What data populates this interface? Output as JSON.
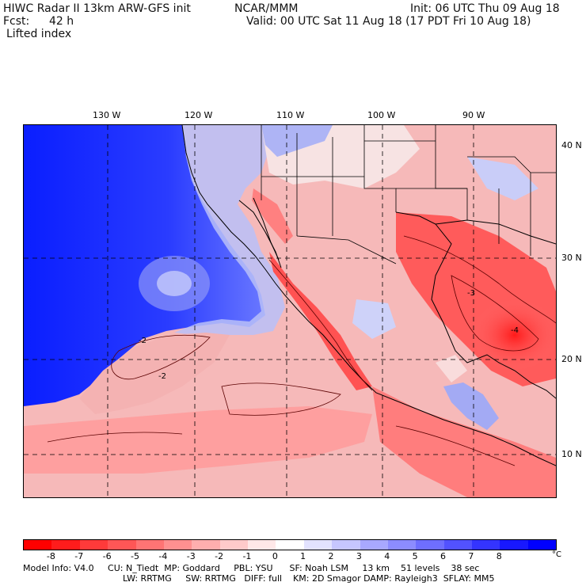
{
  "header": {
    "title": "HIWC Radar II 13km ARW-GFS init",
    "org": "NCAR/MMM",
    "init": "Init: 06 UTC Thu 09 Aug 18",
    "fcst_label": "Fcst:",
    "fcst_value": "42 h",
    "valid": "Valid: 00 UTC Sat 11 Aug 18 (17 PDT Fri 10 Aug 18)",
    "field": "Lifted index"
  },
  "map": {
    "lon_labels": [
      "130 W",
      "120 W",
      "110 W",
      "100 W",
      "90 W"
    ],
    "lat_labels": [
      "40 N",
      "30 N",
      "20 N",
      "10 N"
    ],
    "contour_labels": [
      "-2",
      "-2",
      "-3",
      "-4"
    ]
  },
  "colorbar": {
    "ticks": [
      "-8",
      "-7",
      "-6",
      "-5",
      "-4",
      "-3",
      "-2",
      "-1",
      "0",
      "1",
      "2",
      "3",
      "4",
      "5",
      "6",
      "7",
      "8"
    ],
    "unit": "°C",
    "colors": [
      "#ff0000",
      "#ff1c1c",
      "#ff3a3a",
      "#ff5656",
      "#ff7474",
      "#ff9090",
      "#ffaeae",
      "#ffcaca",
      "#ffe8e8",
      "#ffffff",
      "#e2e2ff",
      "#c6c6ff",
      "#a8a8ff",
      "#8c8cff",
      "#6e6eff",
      "#5252ff",
      "#3434ff",
      "#1818ff",
      "#0000ff"
    ]
  },
  "footer": {
    "line1": "Model Info: V4.0     CU: N_Tiedt  MP: Goddard     PBL: YSU      SF: Noah LSM     13 km    51 levels    38 sec",
    "line2": "LW: RRTMG     SW: RRTMG   DIFF: full    KM: 2D Smagor DAMP: Rayleigh3  SFLAY: MM5"
  }
}
